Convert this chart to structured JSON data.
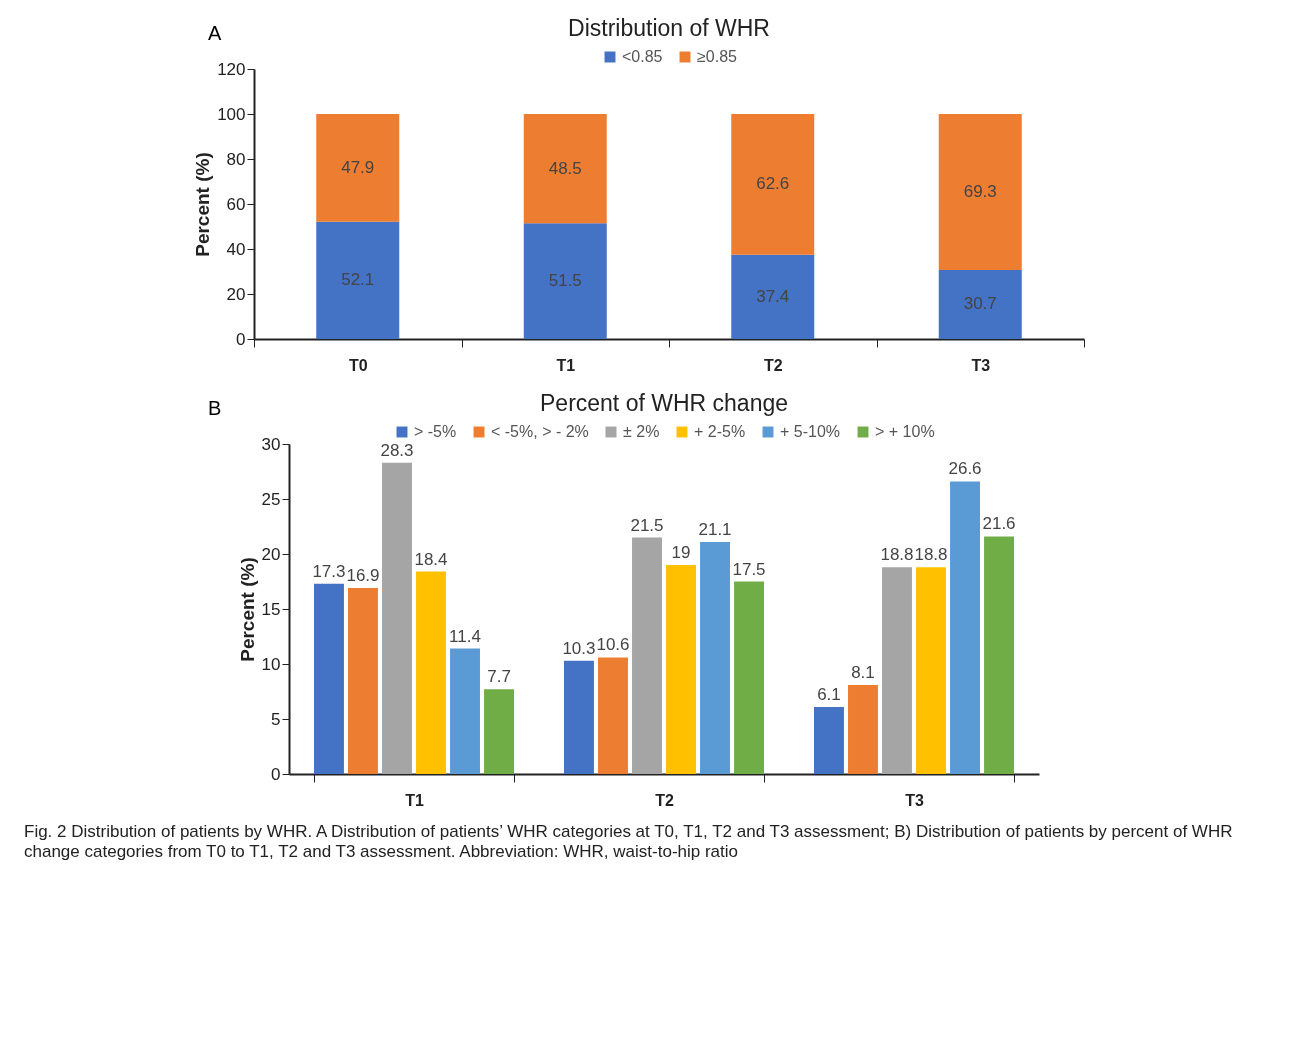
{
  "chart_data": [
    {
      "type": "bar",
      "title": "Distribution of WHR",
      "ylabel": "Percent (%)",
      "categories": [
        "T0",
        "T1",
        "T2",
        "T3"
      ],
      "stacked": true,
      "data_labels": true,
      "legend": "top",
      "grid": false,
      "ylim": [
        0,
        120
      ],
      "yticks": [
        0,
        20,
        40,
        60,
        80,
        100,
        120
      ],
      "annotations": [
        "A"
      ],
      "series": [
        {
          "name": "<0.85",
          "color": "#4472c4",
          "values": [
            52.1,
            51.5,
            37.4,
            30.7
          ]
        },
        {
          "name": "≥0.85",
          "color": "#ed7d31",
          "values": [
            47.9,
            48.5,
            62.6,
            69.3
          ]
        }
      ]
    },
    {
      "type": "bar",
      "title": "Percent of WHR change",
      "ylabel": "Percent (%)",
      "categories": [
        "T1",
        "T2",
        "T3"
      ],
      "data_labels": true,
      "legend": "top",
      "grid": false,
      "ylim": [
        0,
        30
      ],
      "yticks": [
        0,
        5,
        10,
        15,
        20,
        25,
        30
      ],
      "annotations": [
        "B",
        "Fig. 2 Distribution of patients by WHR. A Distribution of patients’ WHR categories at T0, T1, T2 and T3 assessment; B) Distribution of patients by percent of WHR change categories from T0 to T1, T2 and T3 assessment. Abbreviation: WHR, waist-to-hip ratio"
      ],
      "series": [
        {
          "name": "> -5%",
          "color": "#4472c4",
          "values": [
            17.3,
            10.3,
            6.1
          ]
        },
        {
          "name": "< -5%, > - 2%",
          "color": "#ed7d31",
          "values": [
            16.9,
            10.6,
            8.1
          ]
        },
        {
          "name": "± 2%",
          "color": "#a5a5a5",
          "values": [
            28.3,
            21.5,
            18.8
          ]
        },
        {
          "name": "+ 2-5%",
          "color": "#ffc000",
          "values": [
            18.4,
            19,
            18.8
          ]
        },
        {
          "name": "+ 5-10%",
          "color": "#5b9bd5",
          "values": [
            11.4,
            21.1,
            26.6
          ]
        },
        {
          "name": "> + 10%",
          "color": "#70ad47",
          "values": [
            7.7,
            17.5,
            21.6
          ]
        }
      ]
    }
  ]
}
